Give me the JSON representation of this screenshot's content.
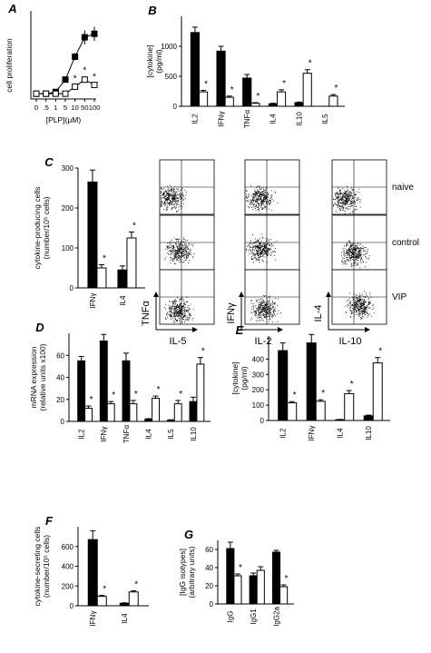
{
  "chart_data": [
    {
      "panel": "A",
      "type": "line",
      "x": [
        "0",
        ".5",
        "1",
        "5",
        "10",
        "50",
        "100"
      ],
      "xlabel": "[PLP](μM)",
      "ylabel": "cell proliferation",
      "ylim": [
        0,
        2.5
      ],
      "series": [
        {
          "fill": "black",
          "values": [
            0.15,
            0.15,
            0.2,
            0.55,
            1.2,
            1.75,
            1.85
          ],
          "errors": [
            0.03,
            0.03,
            0.03,
            0.08,
            0.1,
            0.2,
            0.2
          ]
        },
        {
          "fill": "white",
          "values": [
            0.15,
            0.15,
            0.15,
            0.15,
            0.35,
            0.55,
            0.4
          ],
          "errors": [
            0.03,
            0.03,
            0.03,
            0.03,
            0.05,
            0.08,
            0.05
          ]
        }
      ],
      "marks": [
        {
          "x": 4,
          "text": "*"
        },
        {
          "x": 5,
          "text": "*"
        },
        {
          "x": 6,
          "text": "*"
        }
      ]
    },
    {
      "panel": "B",
      "type": "bar",
      "categories": [
        "IL2",
        "IFNγ",
        "TNFα",
        "IL4",
        "IL10",
        "IL5"
      ],
      "ylabel": "[cytokine] (pg/ml)",
      "ylim": [
        0,
        1500
      ],
      "yticks": [
        0,
        500,
        1000
      ],
      "series": [
        {
          "fill": "black",
          "values": [
            1230,
            920,
            470,
            40,
            60,
            0
          ],
          "errors": [
            90,
            80,
            60,
            10,
            10,
            0
          ]
        },
        {
          "fill": "white",
          "values": [
            240,
            150,
            50,
            240,
            550,
            170
          ],
          "errors": [
            25,
            20,
            10,
            35,
            60,
            25
          ]
        }
      ],
      "marks": [
        "*",
        "*",
        "*",
        "*",
        "*",
        "*"
      ]
    },
    {
      "panel": "C",
      "type": "bar",
      "categories": [
        "IFNγ",
        "IL4"
      ],
      "ylabel": "cytokine-producing cells (number/10⁵ cells)",
      "ylim": [
        0,
        300
      ],
      "yticks": [
        0,
        100,
        200,
        300
      ],
      "series": [
        {
          "fill": "black",
          "values": [
            265,
            45
          ],
          "errors": [
            30,
            10
          ]
        },
        {
          "fill": "white",
          "values": [
            50,
            125
          ],
          "errors": [
            8,
            15
          ]
        }
      ],
      "marks": [
        "*",
        "*"
      ]
    },
    {
      "panel": "D",
      "type": "bar",
      "categories": [
        "IL2",
        "IFNγ",
        "TNFα",
        "IL4",
        "IL5",
        "IL10"
      ],
      "ylabel": "mRNA expression (relative units x100)",
      "ylim": [
        0,
        80
      ],
      "yticks": [
        0,
        20,
        40,
        60
      ],
      "series": [
        {
          "fill": "black",
          "values": [
            55,
            73,
            55,
            2,
            1,
            18
          ],
          "errors": [
            4,
            6,
            7,
            0.5,
            0.5,
            4
          ]
        },
        {
          "fill": "white",
          "values": [
            12,
            16,
            16,
            21,
            16,
            52
          ],
          "errors": [
            2,
            2,
            3,
            2,
            3,
            6
          ]
        }
      ],
      "marks": [
        "*",
        "*",
        "*",
        "*",
        "*",
        "*"
      ]
    },
    {
      "panel": "E",
      "type": "bar",
      "categories": [
        "IL2",
        "IFNγ",
        "IL4",
        "IL10"
      ],
      "ylabel": "[cytokine] (pg/ml)",
      "ylim": [
        0,
        550
      ],
      "yticks": [
        0,
        100,
        200,
        300,
        400
      ],
      "series": [
        {
          "fill": "black",
          "values": [
            455,
            505,
            5,
            30
          ],
          "errors": [
            50,
            55,
            2,
            5
          ]
        },
        {
          "fill": "white",
          "values": [
            115,
            125,
            175,
            375
          ],
          "errors": [
            8,
            10,
            20,
            35
          ]
        }
      ],
      "marks": [
        "*",
        "*",
        "*",
        "*"
      ]
    },
    {
      "panel": "F",
      "type": "bar",
      "categories": [
        "IFNγ",
        "IL4"
      ],
      "ylabel": "cytokine-secreting cells (number/10⁵ cells)",
      "ylim": [
        0,
        800
      ],
      "yticks": [
        0,
        200,
        400,
        600
      ],
      "series": [
        {
          "fill": "black",
          "values": [
            670,
            25
          ],
          "errors": [
            90,
            5
          ]
        },
        {
          "fill": "white",
          "values": [
            95,
            140
          ],
          "errors": [
            10,
            12
          ]
        }
      ],
      "marks": [
        "*",
        "*"
      ]
    },
    {
      "panel": "G",
      "type": "bar",
      "categories": [
        "IgG",
        "IgG1",
        "IgG2a"
      ],
      "ylabel": "[IgG isotypes] (arbitrary units)",
      "ylim": [
        0,
        70
      ],
      "yticks": [
        0,
        20,
        40,
        60
      ],
      "series": [
        {
          "fill": "black",
          "values": [
            61,
            31,
            57
          ],
          "errors": [
            7,
            3,
            2
          ]
        },
        {
          "fill": "white",
          "values": [
            31,
            37,
            19
          ],
          "errors": [
            2,
            4,
            2
          ]
        }
      ],
      "marks": [
        "*",
        "",
        "*"
      ]
    },
    {
      "panel": "flow",
      "type": "scatter",
      "row_labels": [
        "naive",
        "control",
        "VIP"
      ],
      "columns": [
        {
          "ylabel": "TNFα",
          "xlabel": "IL-5"
        },
        {
          "ylabel": "IFNγ",
          "xlabel": "IL-2"
        },
        {
          "ylabel": "IL-4",
          "xlabel": "IL-10"
        }
      ]
    }
  ]
}
